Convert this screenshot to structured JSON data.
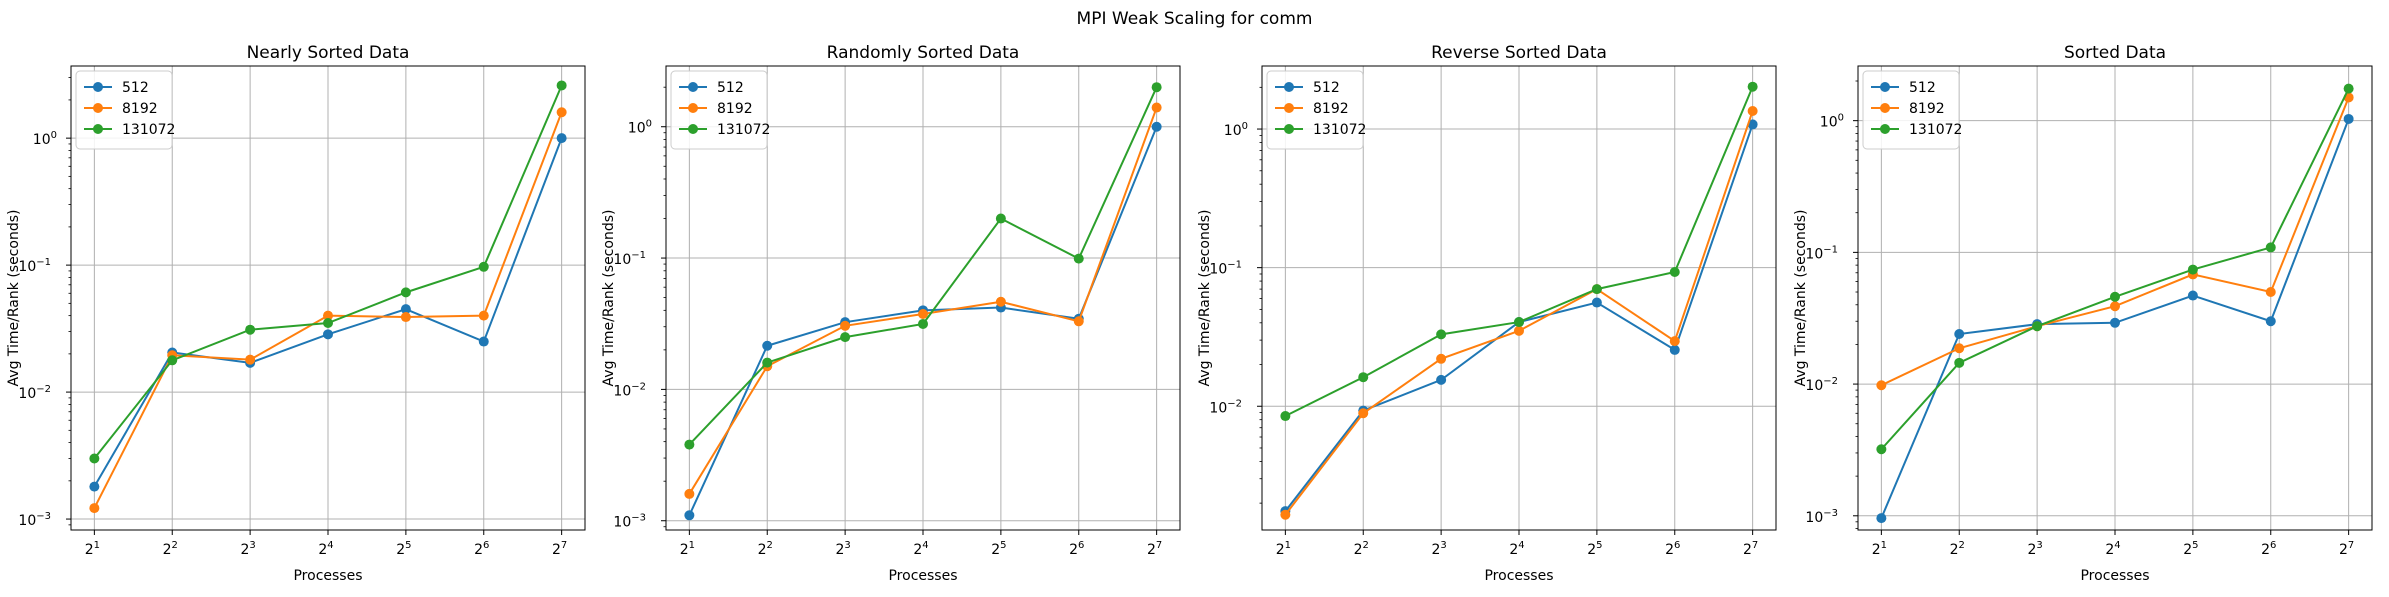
{
  "suptitle": "MPI Weak Scaling for comm",
  "chart_data": [
    {
      "type": "line",
      "title": "Nearly Sorted Data",
      "xlabel": "Processes",
      "ylabel": "Avg Time/Rank (seconds)",
      "x": [
        2,
        4,
        8,
        16,
        32,
        64,
        128
      ],
      "x_tick_labels": [
        {
          "base": "2",
          "exp": "1"
        },
        {
          "base": "2",
          "exp": "2"
        },
        {
          "base": "2",
          "exp": "3"
        },
        {
          "base": "2",
          "exp": "4"
        },
        {
          "base": "2",
          "exp": "5"
        },
        {
          "base": "2",
          "exp": "6"
        },
        {
          "base": "2",
          "exp": "7"
        }
      ],
      "xscale": "log2",
      "yscale": "log10",
      "ylim": [
        0.00082,
        3.7
      ],
      "y_ticks": [
        {
          "value": 0.001,
          "base": "10",
          "exp": "−3"
        },
        {
          "value": 0.01,
          "base": "10",
          "exp": "−2"
        },
        {
          "value": 0.1,
          "base": "10",
          "exp": "−1"
        },
        {
          "value": 1,
          "base": "10",
          "exp": "0"
        }
      ],
      "grid": true,
      "legend": "upper left",
      "series": [
        {
          "name": "512",
          "color": "#1f77b4",
          "values": [
            0.0018,
            0.0205,
            0.017,
            0.0285,
            0.045,
            0.025,
            1.0
          ]
        },
        {
          "name": "8192",
          "color": "#ff7f0e",
          "values": [
            0.00122,
            0.0195,
            0.018,
            0.04,
            0.039,
            0.04,
            1.6
          ]
        },
        {
          "name": "131072",
          "color": "#2ca02c",
          "values": [
            0.003,
            0.0178,
            0.031,
            0.035,
            0.061,
            0.097,
            2.6
          ]
        }
      ]
    },
    {
      "type": "line",
      "title": "Randomly Sorted Data",
      "xlabel": "Processes",
      "ylabel": "Avg Time/Rank (seconds)",
      "x": [
        2,
        4,
        8,
        16,
        32,
        64,
        128
      ],
      "x_tick_labels": [
        {
          "base": "2",
          "exp": "1"
        },
        {
          "base": "2",
          "exp": "2"
        },
        {
          "base": "2",
          "exp": "3"
        },
        {
          "base": "2",
          "exp": "4"
        },
        {
          "base": "2",
          "exp": "5"
        },
        {
          "base": "2",
          "exp": "6"
        },
        {
          "base": "2",
          "exp": "7"
        }
      ],
      "xscale": "log2",
      "yscale": "log10",
      "ylim": [
        0.00085,
        2.9
      ],
      "y_ticks": [
        {
          "value": 0.001,
          "base": "10",
          "exp": "−3"
        },
        {
          "value": 0.01,
          "base": "10",
          "exp": "−2"
        },
        {
          "value": 0.1,
          "base": "10",
          "exp": "−1"
        },
        {
          "value": 1,
          "base": "10",
          "exp": "0"
        }
      ],
      "grid": true,
      "legend": "upper left",
      "series": [
        {
          "name": "512",
          "color": "#1f77b4",
          "values": [
            0.0011,
            0.0215,
            0.0325,
            0.04,
            0.042,
            0.0345,
            1.0
          ]
        },
        {
          "name": "8192",
          "color": "#ff7f0e",
          "values": [
            0.0016,
            0.015,
            0.0305,
            0.0375,
            0.0465,
            0.033,
            1.4
          ]
        },
        {
          "name": "131072",
          "color": "#2ca02c",
          "values": [
            0.0038,
            0.016,
            0.025,
            0.0315,
            0.2,
            0.099,
            2.0
          ]
        }
      ]
    },
    {
      "type": "line",
      "title": "Reverse Sorted Data",
      "xlabel": "Processes",
      "ylabel": "Avg Time/Rank (seconds)",
      "x": [
        2,
        4,
        8,
        16,
        32,
        64,
        128
      ],
      "x_tick_labels": [
        {
          "base": "2",
          "exp": "1"
        },
        {
          "base": "2",
          "exp": "2"
        },
        {
          "base": "2",
          "exp": "3"
        },
        {
          "base": "2",
          "exp": "4"
        },
        {
          "base": "2",
          "exp": "5"
        },
        {
          "base": "2",
          "exp": "6"
        },
        {
          "base": "2",
          "exp": "7"
        }
      ],
      "xscale": "log2",
      "yscale": "log10",
      "ylim": [
        0.00128,
        2.85
      ],
      "y_ticks": [
        {
          "value": 0.01,
          "base": "10",
          "exp": "−2"
        },
        {
          "value": 0.1,
          "base": "10",
          "exp": "−1"
        },
        {
          "value": 1,
          "base": "10",
          "exp": "0"
        }
      ],
      "grid": true,
      "legend": "upper left",
      "series": [
        {
          "name": "512",
          "color": "#1f77b4",
          "values": [
            0.00175,
            0.0093,
            0.0155,
            0.0405,
            0.056,
            0.0255,
            1.08
          ]
        },
        {
          "name": "8192",
          "color": "#ff7f0e",
          "values": [
            0.00165,
            0.0089,
            0.022,
            0.035,
            0.07,
            0.0295,
            1.35
          ]
        },
        {
          "name": "131072",
          "color": "#2ca02c",
          "values": [
            0.0085,
            0.0162,
            0.033,
            0.0405,
            0.07,
            0.093,
            2.02
          ]
        }
      ]
    },
    {
      "type": "line",
      "title": "Sorted Data",
      "xlabel": "Processes",
      "ylabel": "Avg Time/Rank (seconds)",
      "x": [
        2,
        4,
        8,
        16,
        32,
        64,
        128
      ],
      "x_tick_labels": [
        {
          "base": "2",
          "exp": "1"
        },
        {
          "base": "2",
          "exp": "2"
        },
        {
          "base": "2",
          "exp": "3"
        },
        {
          "base": "2",
          "exp": "4"
        },
        {
          "base": "2",
          "exp": "5"
        },
        {
          "base": "2",
          "exp": "6"
        },
        {
          "base": "2",
          "exp": "7"
        }
      ],
      "xscale": "log2",
      "yscale": "log10",
      "ylim": [
        0.00078,
        2.6
      ],
      "y_ticks": [
        {
          "value": 0.001,
          "base": "10",
          "exp": "−3"
        },
        {
          "value": 0.01,
          "base": "10",
          "exp": "−2"
        },
        {
          "value": 0.1,
          "base": "10",
          "exp": "−1"
        },
        {
          "value": 1,
          "base": "10",
          "exp": "0"
        }
      ],
      "grid": true,
      "legend": "upper left",
      "series": [
        {
          "name": "512",
          "color": "#1f77b4",
          "values": [
            0.00096,
            0.024,
            0.0285,
            0.0292,
            0.047,
            0.03,
            1.03
          ]
        },
        {
          "name": "8192",
          "color": "#ff7f0e",
          "values": [
            0.0098,
            0.0187,
            0.0275,
            0.039,
            0.068,
            0.05,
            1.5
          ]
        },
        {
          "name": "131072",
          "color": "#2ca02c",
          "values": [
            0.0032,
            0.0145,
            0.0275,
            0.046,
            0.074,
            0.109,
            1.75
          ]
        }
      ]
    }
  ]
}
